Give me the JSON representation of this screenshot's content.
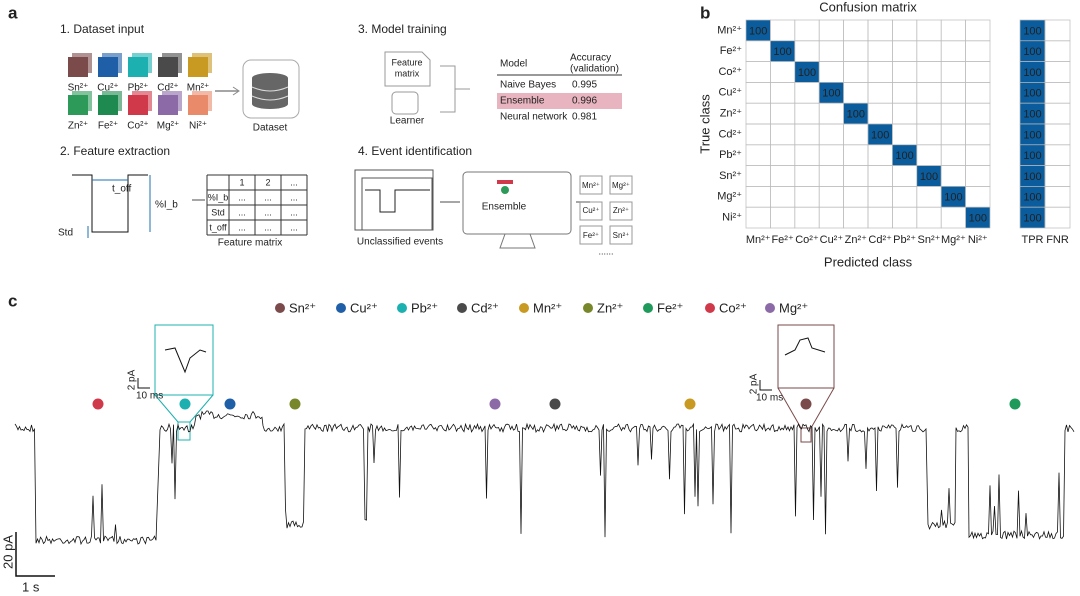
{
  "panel_labels": [
    "a",
    "b",
    "c"
  ],
  "panel_a": {
    "dataset_input": {
      "title": "1. Dataset input",
      "ions": [
        "Sn²⁺",
        "Cu²⁺",
        "Pb²⁺",
        "Cd²⁺",
        "Mn²⁺",
        "Zn²⁺",
        "Fe²⁺",
        "Co²⁺",
        "Mg²⁺",
        "Ni²⁺"
      ],
      "dataset_label": "Dataset"
    },
    "feature_extraction": {
      "title": "2. Feature extraction",
      "std_label": "Std",
      "toff_label": "t_off",
      "amp_label": "%I_b",
      "table": {
        "header": [
          "1",
          "2",
          "..."
        ],
        "rows": [
          [
            "%I_b",
            "...",
            "...",
            "..."
          ],
          [
            "Std",
            "...",
            "...",
            "..."
          ],
          [
            "t_off",
            "...",
            "...",
            "..."
          ]
        ]
      },
      "caption": "Feature matrix"
    },
    "model_training": {
      "title": "3. Model training",
      "feature_doc": [
        "Feature",
        "matrix"
      ],
      "learner": "Learner",
      "table": {
        "header": [
          "Model",
          "Accuracy",
          "(validation)"
        ],
        "rows": [
          [
            "Naive Bayes",
            "0.995"
          ],
          [
            "Ensemble",
            "0.996"
          ],
          [
            "Neural network",
            "0.981"
          ]
        ]
      }
    },
    "event_identification": {
      "title": "4. Event identification",
      "model": "Ensemble",
      "caption": "Unclassified events",
      "outputs": [
        "Mn²⁺",
        "Mg²⁺",
        "Cu²⁺",
        "Zn²⁺",
        "Fe²⁺",
        "Sn²⁺"
      ],
      "more": "......"
    }
  },
  "chart_data": [
    {
      "type": "heatmap",
      "title": "Confusion matrix",
      "x_label": "Predicted class",
      "y_label": "True class",
      "x_categories": [
        "Mn²⁺",
        "Fe²⁺",
        "Co²⁺",
        "Cu²⁺",
        "Zn²⁺",
        "Cd²⁺",
        "Pb²⁺",
        "Sn²⁺",
        "Mg²⁺",
        "Ni²⁺"
      ],
      "y_categories": [
        "Mn²⁺",
        "Fe²⁺",
        "Co²⁺",
        "Cu²⁺",
        "Zn²⁺",
        "Cd²⁺",
        "Pb²⁺",
        "Sn²⁺",
        "Mg²⁺",
        "Ni²⁺"
      ],
      "values": [
        [
          100,
          0,
          0,
          0,
          0,
          0,
          0,
          0,
          0,
          0
        ],
        [
          0,
          100,
          0,
          0,
          0,
          0,
          0,
          0,
          0,
          0
        ],
        [
          0,
          0,
          100,
          0,
          0,
          0,
          0,
          0,
          0,
          0
        ],
        [
          0,
          0,
          0,
          100,
          0,
          0,
          0,
          0,
          0,
          0
        ],
        [
          0,
          0,
          0,
          0,
          100,
          0,
          0,
          0,
          0,
          0
        ],
        [
          0,
          0,
          0,
          0,
          0,
          100,
          0,
          0,
          0,
          0
        ],
        [
          0,
          0,
          0,
          0,
          0,
          0,
          100,
          0,
          0,
          0
        ],
        [
          0,
          0,
          0,
          0,
          0,
          0,
          0,
          100,
          0,
          0
        ],
        [
          0,
          0,
          0,
          0,
          0,
          0,
          0,
          0,
          100,
          0
        ],
        [
          0,
          0,
          0,
          0,
          0,
          0,
          0,
          0,
          0,
          100
        ]
      ],
      "color": "#0b5c9c"
    },
    {
      "type": "heatmap",
      "x_categories": [
        "TPR",
        "FNR"
      ],
      "values": [
        [
          100,
          0
        ],
        [
          100,
          0
        ],
        [
          100,
          0
        ],
        [
          100,
          0
        ],
        [
          100,
          0
        ],
        [
          100,
          0
        ],
        [
          100,
          0
        ],
        [
          100,
          0
        ],
        [
          100,
          0
        ],
        [
          100,
          0
        ]
      ],
      "color": "#0b5c9c"
    }
  ],
  "panel_c": {
    "legend": [
      {
        "name": "Sn²⁺",
        "color": "#7b4a4a"
      },
      {
        "name": "Cu²⁺",
        "color": "#1f5fa8"
      },
      {
        "name": "Pb²⁺",
        "color": "#1cb0b0"
      },
      {
        "name": "Cd²⁺",
        "color": "#4a4a4a"
      },
      {
        "name": "Mn²⁺",
        "color": "#c99a22"
      },
      {
        "name": "Zn²⁺",
        "color": "#77872a"
      },
      {
        "name": "Fe²⁺",
        "color": "#1f9a5a"
      },
      {
        "name": "Co²⁺",
        "color": "#d0394a"
      },
      {
        "name": "Mg²⁺",
        "color": "#8c6aa8"
      }
    ],
    "inset_scales": [
      {
        "y": "2 pA",
        "x": "10 ms"
      },
      {
        "y": "2 pA",
        "x": "10 ms"
      }
    ],
    "scale_y": "20 pA",
    "scale_x": "1 s"
  }
}
